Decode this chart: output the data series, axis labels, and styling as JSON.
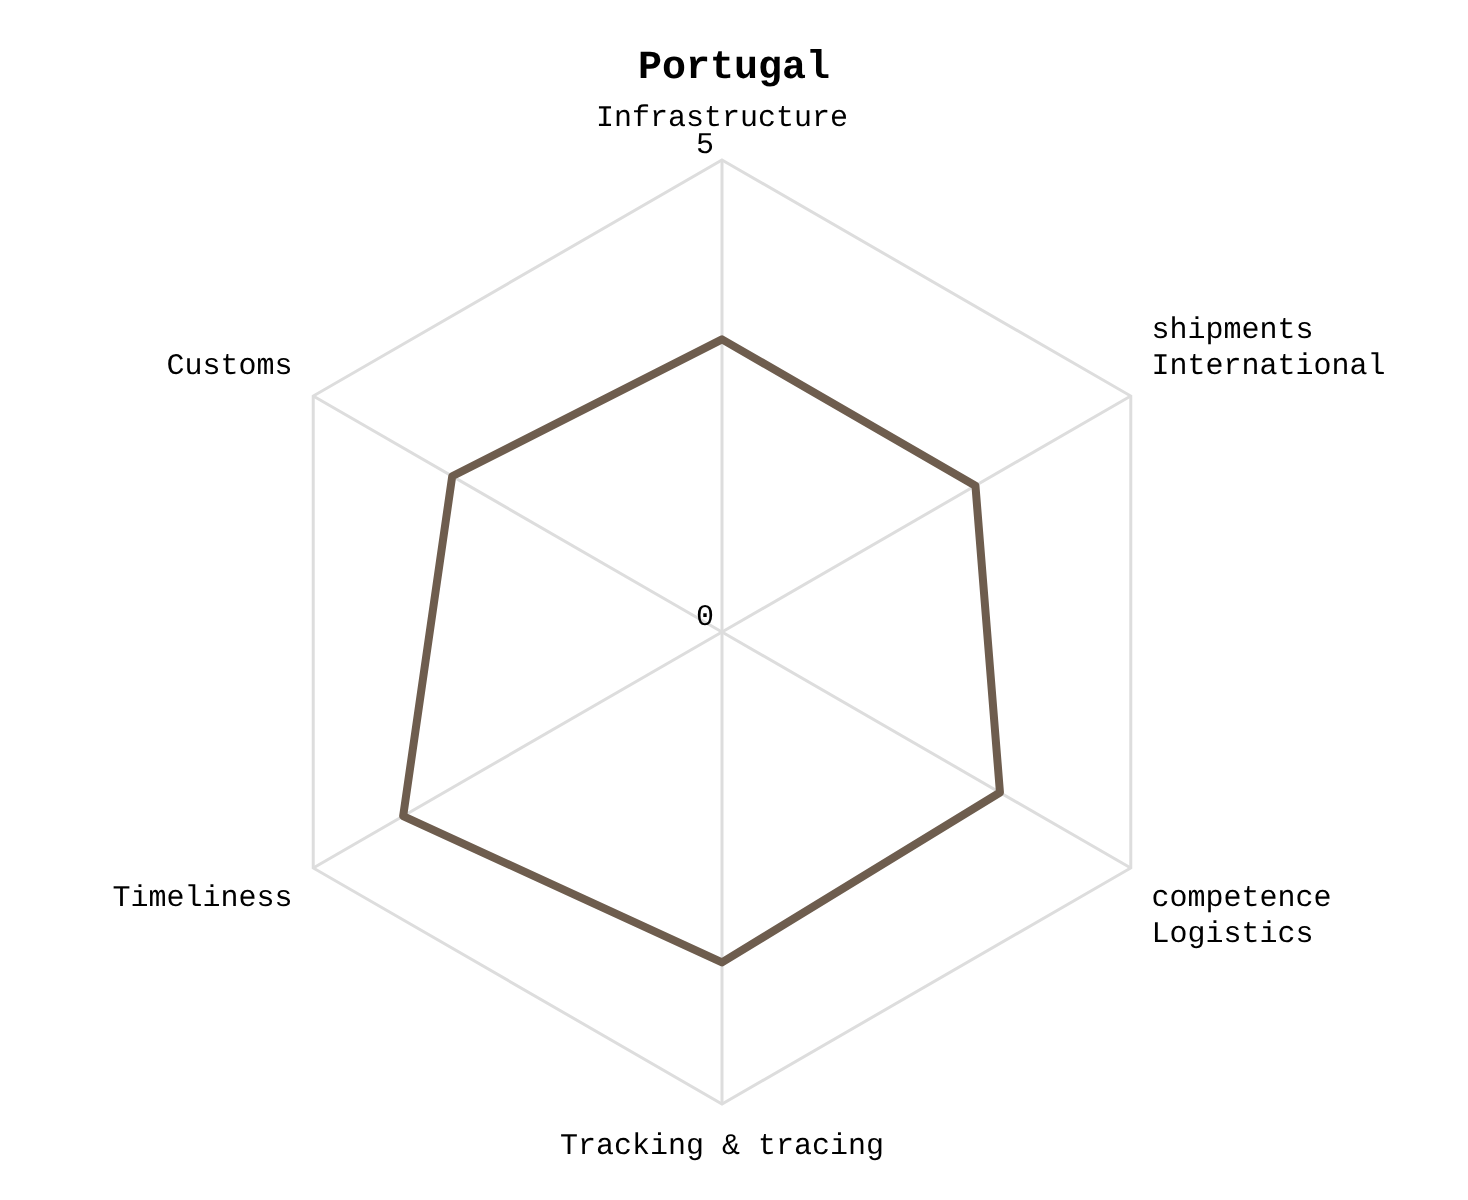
{
  "chart_data": {
    "type": "radar",
    "title": "Portugal",
    "categories": [
      "Infrastructure",
      "shipments\nInternational",
      "competence\nLogistics",
      "Tracking & tracing",
      "Timeliness",
      "Customs"
    ],
    "series": [
      {
        "color": "#6e5d4e",
        "values": [
          3.1,
          3.1,
          3.4,
          3.5,
          3.9,
          3.3
        ]
      }
    ],
    "ylim": [
      0,
      5
    ],
    "yticks": [
      0,
      5
    ],
    "grid": true,
    "legend": false,
    "marker": "none"
  }
}
